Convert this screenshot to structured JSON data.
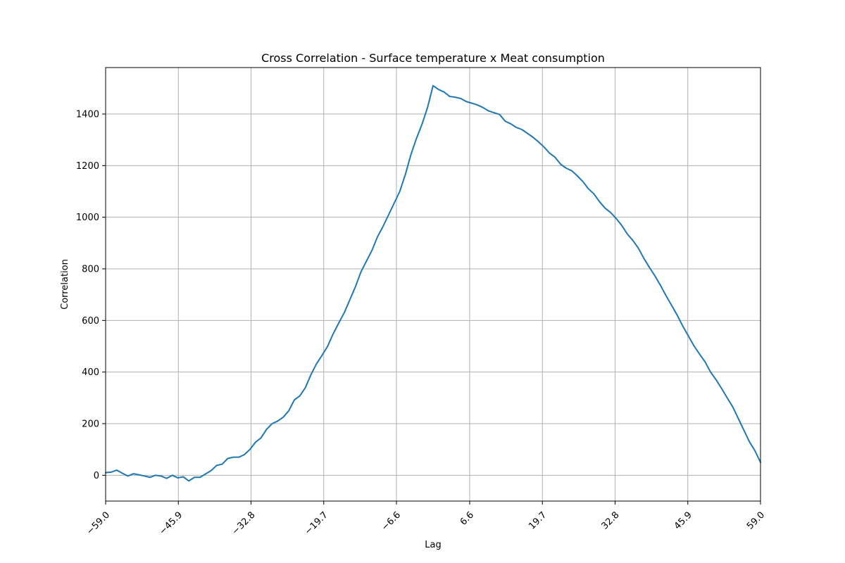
{
  "chart_data": {
    "type": "line",
    "title": "Cross Correlation - Surface temperature x Meat consumption",
    "xlabel": "Lag",
    "ylabel": "Correlation",
    "xlim": [
      -59,
      59
    ],
    "ylim": [
      -100,
      1580
    ],
    "grid": true,
    "line_color": "#1f77b4",
    "x_ticks": [
      -59.0,
      -45.9,
      -32.8,
      -19.7,
      -6.6,
      6.6,
      19.7,
      32.8,
      45.9,
      59.0
    ],
    "x_tick_labels": [
      "−59.0",
      "−45.9",
      "−32.8",
      "−19.7",
      "−6.6",
      "6.6",
      "19.7",
      "32.8",
      "45.9",
      "59.0"
    ],
    "y_ticks": [
      0,
      200,
      400,
      600,
      800,
      1000,
      1200,
      1400
    ],
    "y_tick_labels": [
      "0",
      "200",
      "400",
      "600",
      "800",
      "1000",
      "1200",
      "1400"
    ],
    "series": [
      {
        "x": [
          -59,
          -58,
          -57,
          -56,
          -55,
          -54,
          -53,
          -52,
          -51,
          -50,
          -49,
          -48,
          -47,
          -46,
          -45,
          -44,
          -43,
          -42,
          -41,
          -40,
          -39,
          -38,
          -37,
          -36,
          -35,
          -34,
          -33,
          -32,
          -31,
          -30,
          -29,
          -28,
          -27,
          -26,
          -25,
          -24,
          -23,
          -22,
          -21,
          -20,
          -19,
          -18,
          -17,
          -16,
          -15,
          -14,
          -13,
          -12,
          -11,
          -10,
          -9,
          -8,
          -7,
          -6,
          -5,
          -4,
          -3,
          -2,
          -1,
          0,
          1,
          2,
          3,
          4,
          5,
          6,
          7,
          8,
          9,
          10,
          11,
          12,
          13,
          14,
          15,
          16,
          17,
          18,
          19,
          20,
          21,
          22,
          23,
          24,
          25,
          26,
          27,
          28,
          29,
          30,
          31,
          32,
          33,
          34,
          35,
          36,
          37,
          38,
          39,
          40,
          41,
          42,
          43,
          44,
          45,
          46,
          47,
          48,
          49,
          50,
          51,
          52,
          53,
          54,
          55,
          56,
          57,
          58,
          59
        ],
        "values": [
          10,
          12,
          20,
          8,
          -3,
          6,
          2,
          -3,
          -8,
          0,
          -3,
          -12,
          0,
          -10,
          -6,
          -22,
          -8,
          -8,
          5,
          18,
          38,
          43,
          65,
          70,
          70,
          80,
          100,
          128,
          145,
          178,
          200,
          210,
          225,
          250,
          292,
          308,
          340,
          390,
          432,
          465,
          500,
          548,
          590,
          630,
          680,
          730,
          788,
          830,
          872,
          925,
          965,
          1010,
          1055,
          1100,
          1165,
          1242,
          1305,
          1360,
          1425,
          1510,
          1495,
          1485,
          1468,
          1465,
          1460,
          1448,
          1442,
          1435,
          1425,
          1412,
          1405,
          1398,
          1372,
          1362,
          1348,
          1340,
          1325,
          1310,
          1292,
          1272,
          1248,
          1232,
          1205,
          1190,
          1180,
          1160,
          1138,
          1110,
          1090,
          1060,
          1035,
          1018,
          995,
          968,
          935,
          910,
          880,
          840,
          805,
          772,
          735,
          695,
          658,
          620,
          578,
          540,
          502,
          470,
          440,
          400,
          370,
          336,
          300,
          265,
          220,
          175,
          130,
          95,
          50
        ]
      }
    ]
  }
}
